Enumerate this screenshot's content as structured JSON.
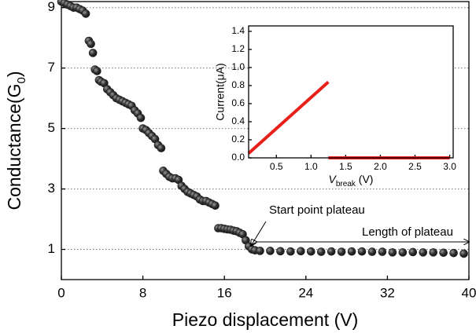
{
  "chart_data": [
    {
      "type": "scatter",
      "xlabel": "Piezo displacement (V)",
      "ylabel_parts": [
        "Conductance(G",
        "0",
        ")"
      ],
      "annotations": [
        "Start point plateau",
        "Length of plateau"
      ],
      "xlim": [
        0,
        40
      ],
      "xticks": [
        0,
        8,
        16,
        24,
        32,
        40
      ],
      "ylim": [
        0,
        9.2
      ],
      "yticks": [
        1,
        3,
        5,
        7,
        9
      ],
      "grid": true,
      "color": "#222222",
      "x": [
        0,
        0.3,
        0.6,
        0.9,
        1.2,
        1.5,
        1.8,
        2.1,
        2.4,
        2.7,
        2.9,
        3.1,
        3.3,
        3.5,
        3.7,
        3.9,
        4.2,
        4.5,
        4.8,
        5.1,
        5.4,
        5.7,
        6.0,
        6.3,
        6.6,
        6.9,
        7.2,
        7.5,
        7.8,
        8.0,
        8.3,
        8.6,
        8.9,
        9.2,
        9.5,
        9.8,
        10.0,
        10.3,
        10.6,
        10.9,
        11.2,
        11.5,
        11.8,
        12.1,
        12.4,
        12.7,
        13.0,
        13.3,
        13.6,
        13.9,
        14.2,
        14.5,
        14.8,
        15.1,
        15.4,
        15.7,
        16.0,
        16.3,
        16.6,
        16.9,
        17.2,
        17.5,
        17.8,
        18.1,
        18.4,
        18.7,
        19.0,
        19.5,
        20.5,
        21.5,
        22.5,
        23.5,
        24.5,
        25.5,
        26.5,
        27.5,
        28.5,
        29.5,
        30.5,
        31.5,
        32.5,
        33.5,
        34.5,
        35.5,
        36.5,
        37.5,
        38.5,
        39.5
      ],
      "values": [
        9.2,
        9.15,
        9.1,
        9.05,
        9.0,
        9.0,
        8.95,
        8.9,
        8.8,
        7.9,
        7.8,
        7.5,
        6.95,
        6.9,
        6.6,
        6.55,
        6.5,
        6.3,
        6.2,
        6.1,
        6.0,
        5.95,
        5.9,
        5.85,
        5.8,
        5.75,
        5.6,
        5.5,
        5.35,
        5.0,
        4.95,
        4.85,
        4.75,
        4.65,
        4.45,
        4.35,
        3.6,
        3.5,
        3.4,
        3.35,
        3.35,
        3.3,
        3.1,
        3.0,
        2.9,
        2.85,
        2.8,
        2.75,
        2.65,
        2.6,
        2.6,
        2.55,
        2.5,
        2.45,
        1.7,
        1.7,
        1.68,
        1.66,
        1.65,
        1.62,
        1.6,
        1.55,
        1.5,
        1.3,
        1.1,
        1.0,
        0.97,
        0.95,
        0.95,
        0.94,
        0.93,
        0.94,
        0.93,
        0.92,
        0.93,
        0.92,
        0.93,
        0.93,
        0.92,
        0.92,
        0.9,
        0.9,
        0.91,
        0.9,
        0.9,
        0.89,
        0.88,
        0.86
      ]
    },
    {
      "type": "line",
      "ylabel": "Current(μA)",
      "xlabel_parts": [
        "V",
        "break",
        " (V)"
      ],
      "xlim": [
        0.1,
        3.05
      ],
      "xticks": [
        {
          "value": 0.5,
          "label": "0.5"
        },
        {
          "value": 1,
          "label": "1.0"
        },
        {
          "value": 1.5,
          "label": "1.5"
        },
        {
          "value": 2,
          "label": "2.0"
        },
        {
          "value": 2.5,
          "label": "2.5"
        },
        {
          "value": 3,
          "label": "3.0"
        }
      ],
      "ylim": [
        0,
        1.46
      ],
      "yticks": [
        {
          "value": 0,
          "label": "0.0"
        },
        0.2,
        0.4,
        0.6,
        0.8,
        {
          "value": 1,
          "label": "1.0"
        },
        1.2,
        1.4
      ],
      "series": [
        {
          "color": "#e8201a",
          "x": [
            0.1,
            1.25
          ],
          "values": [
            0.05,
            0.84
          ]
        },
        {
          "color": "#e8201a",
          "x": [
            1.25,
            3.0
          ],
          "values": [
            0,
            0
          ]
        }
      ]
    }
  ]
}
